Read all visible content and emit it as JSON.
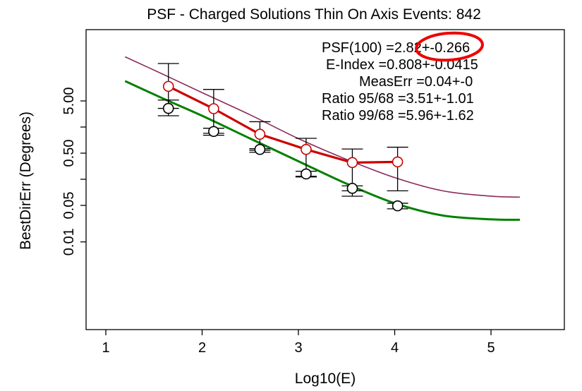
{
  "chart_data": {
    "type": "line",
    "title": "PSF -  Charged Solutions   Thin   On Axis  Events: 842",
    "xlabel": "Log10(E)",
    "ylabel": "BestDirErr (Degrees)",
    "xlim": [
      1,
      6
    ],
    "ylim": [
      0.005,
      60
    ],
    "yscale": "log",
    "xticks": [
      "1",
      "2",
      "3",
      "4",
      "5"
    ],
    "yticks": [
      "0.01",
      "0.05",
      "0.50",
      "5.00"
    ],
    "legend_text": [
      "PSF(100) =2.82+-0.266",
      "E-Index =0.808+-0.0415",
      "MeasErr =0.04+-0",
      "Ratio 95/68 =3.51+-1.01",
      "Ratio 99/68 =5.96+-1.62"
    ],
    "series": [
      {
        "color": "#cc0000",
        "marker": "circle",
        "x": [
          1.65,
          2.12,
          2.6,
          3.08,
          3.56,
          4.03
        ],
        "y": [
          9.5,
          3.55,
          1.15,
          0.59,
          0.33,
          0.34
        ],
        "err_low": [
          3.6,
          1.2,
          0.52,
          0.18,
          0.075,
          0.095
        ],
        "err_high": [
          26,
          8.3,
          2.0,
          0.96,
          0.6,
          0.65
        ]
      },
      {
        "color": "#000000",
        "marker": "circle",
        "x": [
          1.65,
          2.12,
          2.6,
          3.08,
          3.56,
          4.03
        ],
        "y": [
          3.6,
          1.3,
          0.59,
          0.2,
          0.106,
          0.049
        ],
        "err_low": [
          2.6,
          1.1,
          0.57,
          0.175,
          0.095,
          0.043
        ],
        "err_high": [
          5.2,
          1.5,
          0.61,
          0.225,
          0.118,
          0.055
        ]
      },
      {
        "color": "#8b2a5a",
        "marker": "none",
        "x": [
          1.2,
          1.6,
          2.0,
          2.5,
          3.0,
          3.5,
          4.0,
          4.5,
          5.0,
          5.3
        ],
        "y": [
          35,
          16,
          7.2,
          2.7,
          0.95,
          0.38,
          0.17,
          0.095,
          0.075,
          0.072
        ]
      },
      {
        "color": "#008000",
        "marker": "none",
        "x": [
          1.2,
          1.6,
          2.0,
          2.5,
          3.0,
          3.5,
          4.0,
          4.5,
          5.0,
          5.3
        ],
        "y": [
          12,
          5.5,
          2.6,
          0.95,
          0.35,
          0.13,
          0.055,
          0.032,
          0.027,
          0.0265
        ]
      }
    ]
  },
  "annotation": {
    "color": "#ee0000",
    "encloses": "2.82+"
  }
}
